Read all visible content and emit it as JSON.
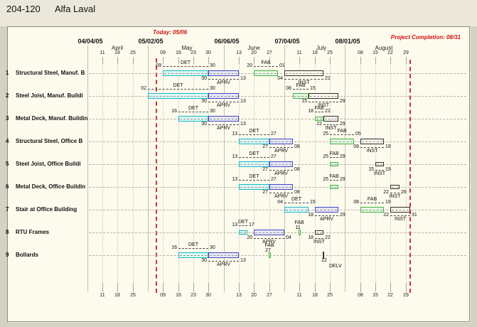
{
  "window": {
    "project_number": "204-120",
    "project_name": "Alfa Laval"
  },
  "annotations": {
    "today": {
      "label": "Today: 05/06",
      "date": "05/06"
    },
    "completion": {
      "label": "Project Completion: 08/31",
      "date": "08/31"
    }
  },
  "timeline": {
    "headers": [
      {
        "label": "04/04/05",
        "date": "04/04"
      },
      {
        "label": "05/02/05",
        "date": "05/02"
      },
      {
        "label": "06/06/05",
        "date": "06/06"
      },
      {
        "label": "07/04/05",
        "date": "07/04"
      },
      {
        "label": "08/01/05",
        "date": "08/01"
      }
    ],
    "months": [
      {
        "label": "April",
        "date": "04/18"
      },
      {
        "label": "May",
        "date": "05/20"
      },
      {
        "label": "June",
        "date": "06/20"
      },
      {
        "label": "July",
        "date": "07/21"
      },
      {
        "label": "August",
        "date": "08/19"
      }
    ],
    "weeks": [
      {
        "label": "11",
        "date": "04/11"
      },
      {
        "label": "18",
        "date": "04/18"
      },
      {
        "label": "25",
        "date": "04/25"
      },
      {
        "label": "09",
        "date": "05/09"
      },
      {
        "label": "16",
        "date": "05/16"
      },
      {
        "label": "23",
        "date": "05/23"
      },
      {
        "label": "30",
        "date": "05/30"
      },
      {
        "label": "13",
        "date": "06/13"
      },
      {
        "label": "20",
        "date": "06/20"
      },
      {
        "label": "27",
        "date": "06/27"
      },
      {
        "label": "11",
        "date": "07/11"
      },
      {
        "label": "18",
        "date": "07/18"
      },
      {
        "label": "25",
        "date": "07/25"
      },
      {
        "label": "08",
        "date": "08/08"
      },
      {
        "label": "15",
        "date": "08/15"
      },
      {
        "label": "22",
        "date": "08/22"
      },
      {
        "label": "29",
        "date": "08/29"
      }
    ]
  },
  "colors": {
    "det_border": "#1ab8c4",
    "det_fill": "#dff7f5",
    "aprv_border": "#4646c2",
    "aprv_fill": "#e7e7f9",
    "fab_border": "#41b341",
    "fab_fill": "#e7f7e1",
    "inst_border": "#2e2e2e",
    "inst_fill": "#fcf9ec",
    "delv_border": "#333333",
    "delv_fill": "#333333",
    "today_red": "#cc2222"
  },
  "chart_data": {
    "type": "gantt",
    "date_format": "MM/DD year 2005",
    "rows": [
      {
        "num": "1",
        "label": "Structural Steel, Manuf. B",
        "bars": [
          {
            "code": "DET",
            "kind": "det",
            "pos": "above",
            "start": "05/09",
            "end": "05/30",
            "s": "09",
            "e": "30"
          },
          {
            "code": "APRV",
            "kind": "aprv",
            "pos": "below",
            "start": "05/30",
            "end": "06/13",
            "s": "30",
            "e": "13"
          },
          {
            "code": "FAB",
            "kind": "fab",
            "pos": "above",
            "start": "06/20",
            "end": "07/01",
            "s": "20",
            "e": "01"
          },
          {
            "code": "INST",
            "kind": "inst",
            "pos": "below",
            "start": "07/04",
            "end": "07/22",
            "s": "04",
            "e": "22"
          }
        ]
      },
      {
        "num": "2",
        "label": "Steel Joist, Manuf. Buildi",
        "bars": [
          {
            "code": "DET",
            "kind": "det",
            "pos": "above",
            "start": "05/02",
            "end": "05/30",
            "s": "02",
            "e": "30"
          },
          {
            "code": "APRV",
            "kind": "aprv",
            "pos": "below",
            "start": "05/30",
            "end": "06/13",
            "s": "30",
            "e": "13"
          },
          {
            "code": "FAB",
            "kind": "fab",
            "pos": "above",
            "start": "07/08",
            "end": "07/15",
            "s": "08",
            "e": "15"
          },
          {
            "code": "INST",
            "kind": "inst",
            "pos": "below",
            "start": "07/15",
            "end": "07/29",
            "s": "15",
            "e": "29"
          }
        ]
      },
      {
        "num": "3",
        "label": "Metal Deck, Manuf. Buildin",
        "bars": [
          {
            "code": "DET",
            "kind": "det",
            "pos": "above",
            "start": "05/16",
            "end": "05/30",
            "s": "16",
            "e": "30"
          },
          {
            "code": "APRV",
            "kind": "aprv",
            "pos": "below",
            "start": "05/30",
            "end": "06/13",
            "s": "30",
            "e": "13"
          },
          {
            "code": "FAB",
            "kind": "fab",
            "pos": "above",
            "start": "07/18",
            "end": "07/22",
            "s": "18",
            "e": "22"
          },
          {
            "code": "INST",
            "kind": "inst",
            "pos": "below",
            "start": "07/22",
            "end": "07/29",
            "s": "22",
            "e": "29"
          }
        ]
      },
      {
        "num": "4",
        "label": "Structural Steel, Office B",
        "bars": [
          {
            "code": "DET",
            "kind": "det",
            "pos": "above",
            "start": "06/13",
            "end": "06/27",
            "s": "13",
            "e": "27"
          },
          {
            "code": "APRV",
            "kind": "aprv",
            "pos": "below",
            "start": "06/27",
            "end": "07/08",
            "s": "27",
            "e": "08"
          },
          {
            "code": "FAB",
            "kind": "fab",
            "pos": "above",
            "start": "07/25",
            "end": "08/05",
            "s": "25",
            "e": "05"
          },
          {
            "code": "INST",
            "kind": "inst",
            "pos": "below",
            "start": "08/08",
            "end": "08/19",
            "s": "08",
            "e": "19"
          }
        ]
      },
      {
        "num": "5",
        "label": "Steel Joist, Office Buildi",
        "bars": [
          {
            "code": "DET",
            "kind": "det",
            "pos": "above",
            "start": "06/13",
            "end": "06/27",
            "s": "13",
            "e": "27"
          },
          {
            "code": "APRV",
            "kind": "aprv",
            "pos": "below",
            "start": "06/27",
            "end": "07/08",
            "s": "27",
            "e": "08"
          },
          {
            "code": "FAB",
            "kind": "fab",
            "pos": "above",
            "start": "07/25",
            "end": "07/29",
            "s": "25",
            "e": "29"
          },
          {
            "code": "INST",
            "kind": "inst",
            "pos": "below",
            "start": "08/15",
            "end": "08/19",
            "s": "15",
            "e": "19"
          }
        ]
      },
      {
        "num": "6",
        "label": "Metal Deck, Office Buildin",
        "bars": [
          {
            "code": "DET",
            "kind": "det",
            "pos": "above",
            "start": "06/13",
            "end": "06/27",
            "s": "13",
            "e": "27"
          },
          {
            "code": "APRV",
            "kind": "aprv",
            "pos": "below",
            "start": "06/27",
            "end": "07/08",
            "s": "27",
            "e": "08"
          },
          {
            "code": "FAB",
            "kind": "fab",
            "pos": "above",
            "start": "07/25",
            "end": "07/29",
            "s": "25",
            "e": "29"
          },
          {
            "code": "INST",
            "kind": "inst",
            "pos": "below",
            "start": "08/22",
            "end": "08/26",
            "s": "22",
            "e": "26"
          }
        ]
      },
      {
        "num": "7",
        "label": "Stair at Office Building",
        "bars": [
          {
            "code": "DET",
            "kind": "det",
            "pos": "above",
            "start": "07/04",
            "end": "07/15",
            "s": "04",
            "e": "15"
          },
          {
            "code": "APRV",
            "kind": "aprv",
            "pos": "below",
            "start": "07/18",
            "end": "07/29",
            "s": "18",
            "e": "29"
          },
          {
            "code": "FAB",
            "kind": "fab",
            "pos": "above",
            "start": "08/08",
            "end": "08/19",
            "s": "08",
            "e": "19"
          },
          {
            "code": "INST",
            "kind": "inst",
            "pos": "below",
            "start": "08/22",
            "end": "08/31",
            "s": "22",
            "e": "31"
          }
        ]
      },
      {
        "num": "8",
        "label": "RTU Frames",
        "bars": [
          {
            "code": "DET",
            "kind": "det",
            "pos": "above",
            "start": "06/13",
            "end": "06/17",
            "s": "13",
            "e": "17"
          },
          {
            "code": "APRV",
            "kind": "aprv",
            "pos": "below",
            "start": "06/20",
            "end": "07/04",
            "s": "20",
            "e": "04"
          },
          {
            "code": "FAB",
            "kind": "fab",
            "pos": "above",
            "start": "07/11",
            "end": "07/11",
            "s": "11",
            "e": "",
            "tick": true
          },
          {
            "code": "INST",
            "kind": "inst",
            "pos": "below",
            "start": "07/18",
            "end": "07/22",
            "s": "18",
            "e": "22"
          }
        ]
      },
      {
        "num": "9",
        "label": "Bollards",
        "bars": [
          {
            "code": "DET",
            "kind": "det",
            "pos": "above",
            "start": "05/16",
            "end": "05/30",
            "s": "16",
            "e": "30"
          },
          {
            "code": "APRV",
            "kind": "aprv",
            "pos": "below",
            "start": "05/30",
            "end": "06/13",
            "s": "30",
            "e": "13"
          },
          {
            "code": "FAB",
            "kind": "fab",
            "pos": "above",
            "start": "06/27",
            "end": "06/27",
            "s": "27",
            "e": "",
            "tick": true
          },
          {
            "code": "DELV",
            "kind": "delv",
            "pos": "below",
            "start": "07/22",
            "end": "07/22",
            "s": "22",
            "e": "",
            "tick": true
          }
        ]
      }
    ]
  }
}
